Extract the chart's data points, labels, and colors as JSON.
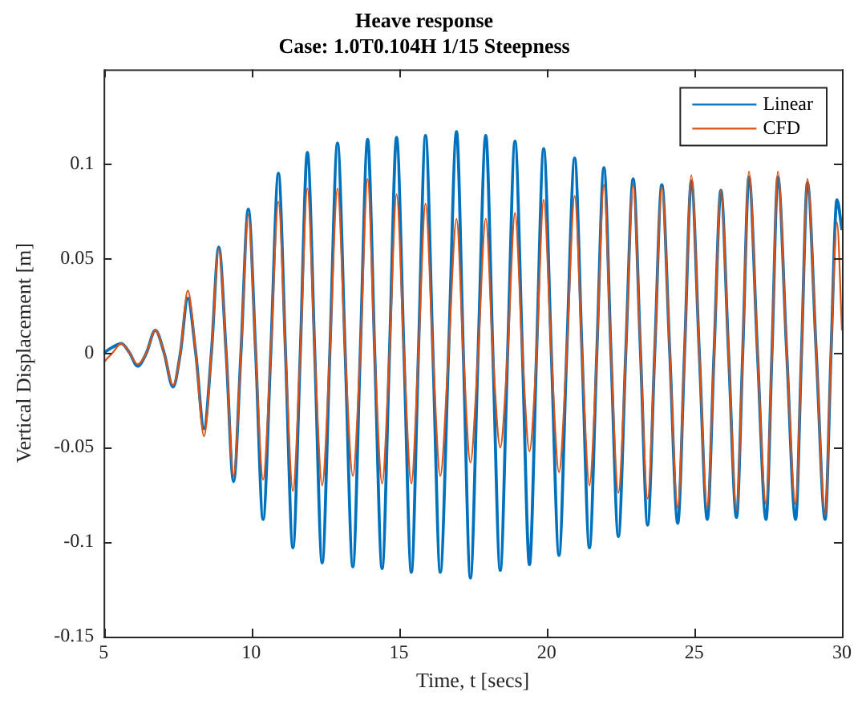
{
  "chart_data": {
    "type": "line",
    "title": "Heave response",
    "subtitle": "Case: 1.0T0.104H 1/15 Steepness",
    "xlabel": "Time, t [secs]",
    "ylabel": "Vertical Displacement [m]",
    "x": [
      5.0,
      5.3,
      5.6,
      5.88,
      6.15,
      6.45,
      6.75,
      7.05,
      7.35,
      7.6,
      7.85,
      8.12,
      8.4,
      8.65,
      8.9,
      9.15,
      9.4,
      9.65,
      9.9,
      10.15,
      10.4,
      10.66,
      10.92,
      11.16,
      11.41,
      11.66,
      11.9,
      12.15,
      12.4,
      12.66,
      12.92,
      13.18,
      13.44,
      13.69,
      13.94,
      14.18,
      14.43,
      14.68,
      14.92,
      15.17,
      15.42,
      15.66,
      15.9,
      16.15,
      16.4,
      16.68,
      16.95,
      17.18,
      17.42,
      17.68,
      17.94,
      18.18,
      18.43,
      18.68,
      18.93,
      19.18,
      19.42,
      19.66,
      19.9,
      20.16,
      20.42,
      20.68,
      20.95,
      21.2,
      21.45,
      21.7,
      21.94,
      22.18,
      22.43,
      22.68,
      22.93,
      23.18,
      23.42,
      23.66,
      23.9,
      24.17,
      24.44,
      24.67,
      24.9,
      25.17,
      25.44,
      25.67,
      25.9,
      26.16,
      26.43,
      26.64,
      26.85,
      27.14,
      27.43,
      27.63,
      27.83,
      28.13,
      28.43,
      28.63,
      28.83,
      29.13,
      29.43,
      29.63,
      29.83,
      30.0
    ],
    "series": [
      {
        "name": "Linear",
        "color": "#0072bd",
        "values": [
          0,
          0.003,
          0.005,
          0,
          -0.007,
          0,
          0.012,
          0,
          -0.018,
          0,
          0.029,
          0,
          -0.04,
          0,
          0.056,
          0,
          -0.068,
          0,
          0.076,
          0,
          -0.088,
          0,
          0.095,
          0,
          -0.103,
          0,
          0.106,
          0,
          -0.111,
          0,
          0.111,
          0,
          -0.113,
          0,
          0.113,
          0,
          -0.114,
          0,
          0.114,
          0,
          -0.116,
          0,
          0.115,
          0,
          -0.116,
          0,
          0.117,
          0,
          -0.119,
          0,
          0.115,
          0,
          -0.115,
          0,
          0.112,
          0,
          -0.112,
          0,
          0.108,
          0,
          -0.107,
          0,
          0.103,
          0,
          -0.103,
          0,
          0.098,
          0,
          -0.097,
          0,
          0.092,
          0,
          -0.091,
          0,
          0.089,
          0,
          -0.09,
          0,
          0.091,
          0,
          -0.088,
          0,
          0.086,
          0,
          -0.087,
          0,
          0.093,
          0,
          -0.088,
          0,
          0.093,
          0,
          -0.088,
          0,
          0.09,
          0,
          -0.088,
          0,
          0.081,
          0.065
        ]
      },
      {
        "name": "CFD",
        "color": "#d95319",
        "values": [
          -0.005,
          0,
          0.005,
          0,
          -0.006,
          0,
          0.012,
          0,
          -0.017,
          0,
          0.033,
          0,
          -0.044,
          0,
          0.055,
          0,
          -0.065,
          0,
          0.073,
          0,
          -0.067,
          0,
          0.08,
          0,
          -0.073,
          0,
          0.087,
          0,
          -0.07,
          0,
          0.087,
          0,
          -0.065,
          0,
          0.092,
          0,
          -0.069,
          0,
          0.084,
          0,
          -0.069,
          0,
          0.079,
          0,
          -0.065,
          0,
          0.071,
          0,
          -0.058,
          0,
          0.071,
          0,
          -0.05,
          0,
          0.074,
          0,
          -0.052,
          0,
          0.081,
          0,
          -0.063,
          0,
          0.083,
          0,
          -0.07,
          0,
          0.089,
          0,
          -0.074,
          0,
          0.089,
          0,
          -0.077,
          0,
          0.088,
          0,
          -0.082,
          0,
          0.094,
          0,
          -0.082,
          0,
          0.086,
          0,
          -0.083,
          0,
          0.096,
          0,
          -0.08,
          0,
          0.096,
          0,
          -0.08,
          0,
          0.092,
          0,
          -0.086,
          0,
          0.069,
          0.012
        ]
      }
    ],
    "xlim": [
      5,
      30
    ],
    "xticks": [
      5,
      10,
      15,
      20,
      25,
      30
    ],
    "ylim": [
      -0.15,
      0.15
    ],
    "yticks": [
      -0.15,
      -0.1,
      -0.05,
      0,
      0.05,
      0.1
    ],
    "grid": false,
    "legend": "top right",
    "marker": "none",
    "line_style": "solid"
  }
}
